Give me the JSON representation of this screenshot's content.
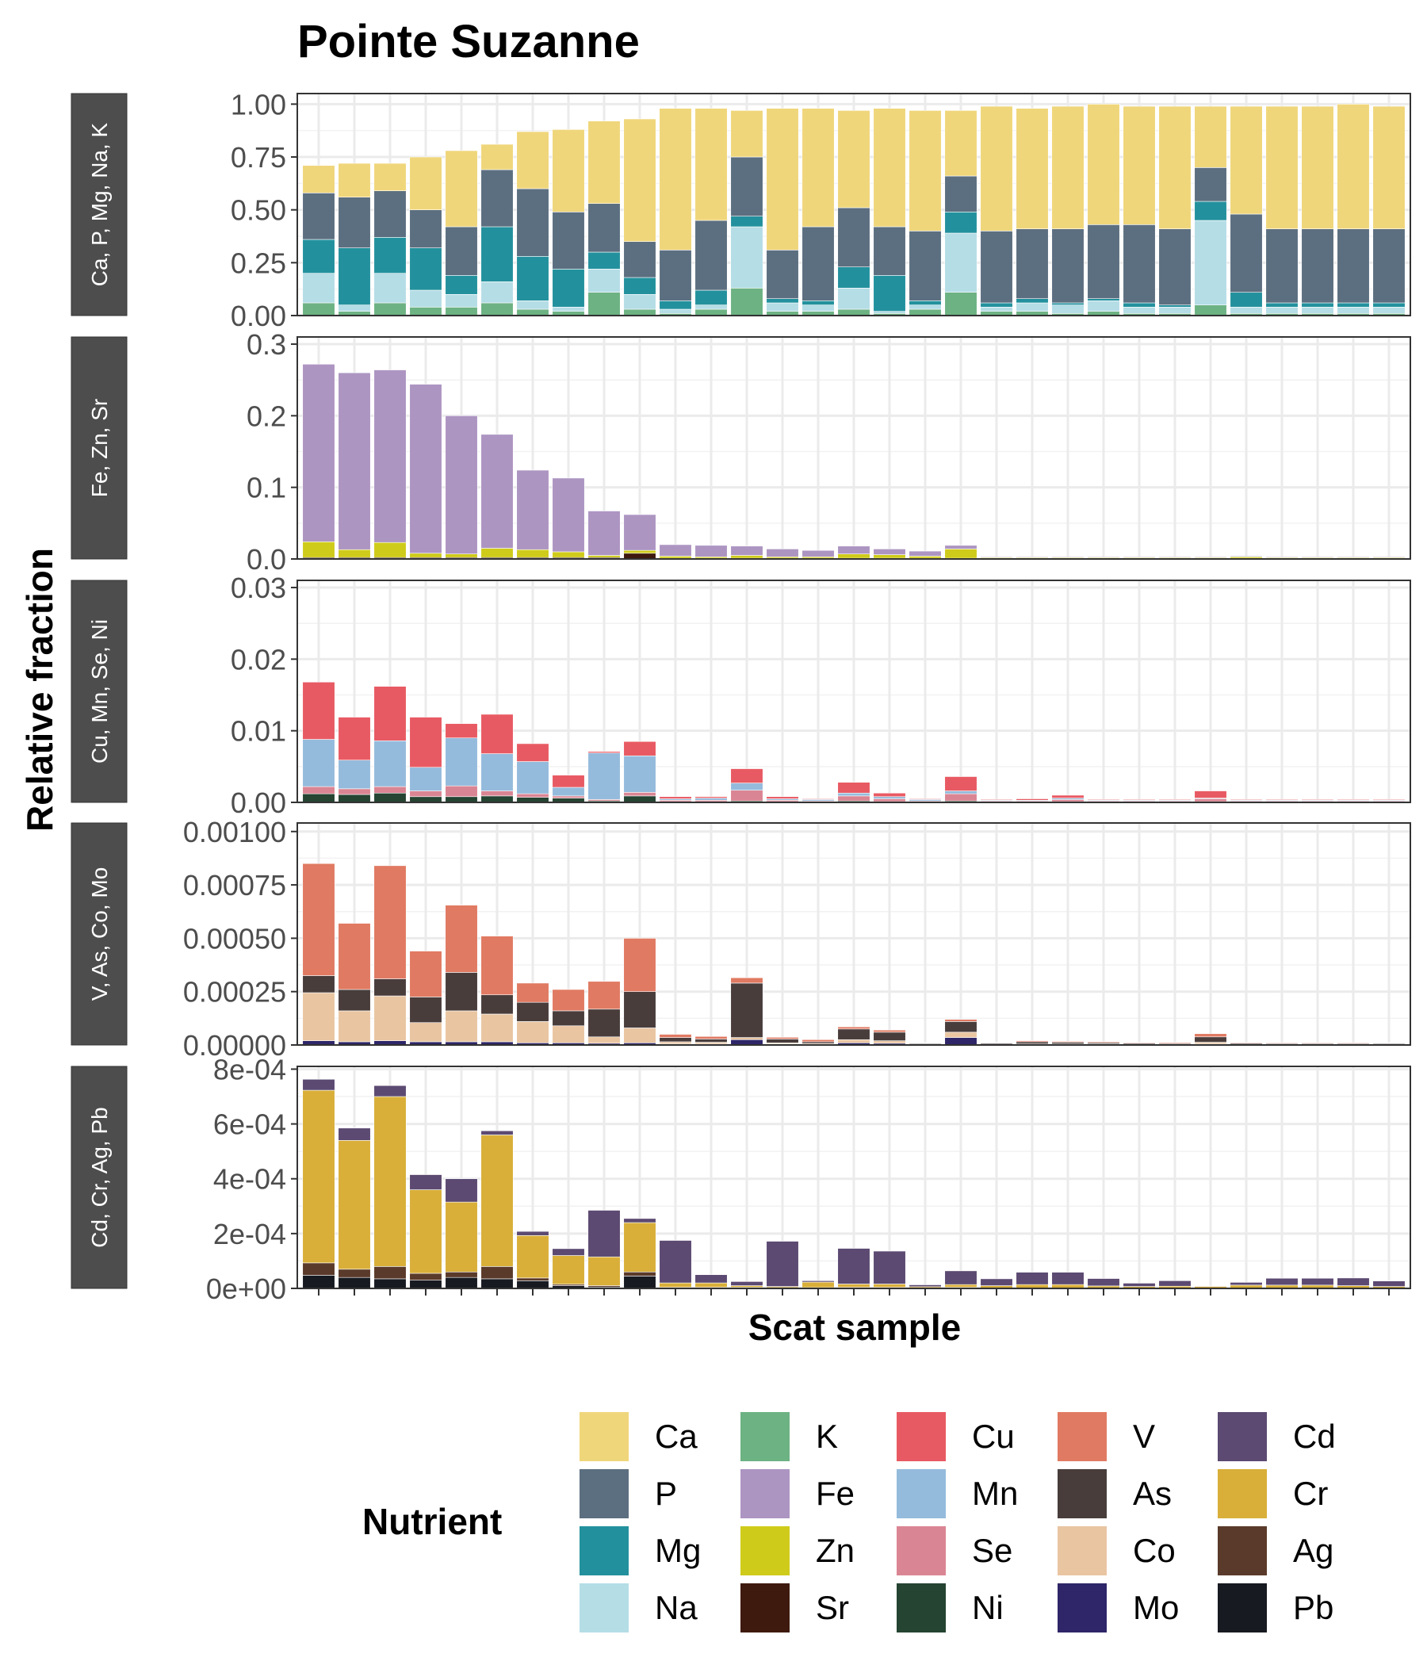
{
  "chart_data": {
    "type": "bar",
    "stacked": true,
    "faceted": true,
    "title": "Pointe Suzanne",
    "xlabel": "Scat sample",
    "ylabel": "Relative fraction",
    "legend": {
      "title": "Nutrient",
      "placement": "bottom",
      "items": [
        {
          "name": "Ca",
          "color": "#F0D67B"
        },
        {
          "name": "P",
          "color": "#5C6F80"
        },
        {
          "name": "Mg",
          "color": "#23919D"
        },
        {
          "name": "Na",
          "color": "#B5DDE6"
        },
        {
          "name": "K",
          "color": "#6DB283"
        },
        {
          "name": "Fe",
          "color": "#AD95C2"
        },
        {
          "name": "Zn",
          "color": "#CFCB1B"
        },
        {
          "name": "Sr",
          "color": "#3E1A0E"
        },
        {
          "name": "Cu",
          "color": "#E85A63"
        },
        {
          "name": "Mn",
          "color": "#95BBDC"
        },
        {
          "name": "Se",
          "color": "#DA8593"
        },
        {
          "name": "Ni",
          "color": "#254432"
        },
        {
          "name": "V",
          "color": "#E07A62"
        },
        {
          "name": "As",
          "color": "#493D3C"
        },
        {
          "name": "Co",
          "color": "#E9C5A2"
        },
        {
          "name": "Mo",
          "color": "#2E2668"
        },
        {
          "name": "Cd",
          "color": "#5C4A72"
        },
        {
          "name": "Cr",
          "color": "#D9AF39"
        },
        {
          "name": "Ag",
          "color": "#5A3A2A"
        },
        {
          "name": "Pb",
          "color": "#171A21"
        }
      ]
    },
    "sample_count": 31,
    "panels": [
      {
        "strip": "Ca, P, Mg, Na, K",
        "ylim": [
          0,
          1.05
        ],
        "ticks": [
          0,
          0.25,
          0.5,
          0.75,
          1.0
        ],
        "tick_labels": [
          "0.00",
          "0.25",
          "0.50",
          "0.75",
          "1.00"
        ],
        "series": [
          {
            "name": "K",
            "values": [
              0.06,
              0.02,
              0.06,
              0.04,
              0.04,
              0.06,
              0.03,
              0.02,
              0.11,
              0.03,
              0.01,
              0.03,
              0.13,
              0.02,
              0.02,
              0.03,
              0.01,
              0.03,
              0.11,
              0.02,
              0.02,
              0.01,
              0.02,
              0.01,
              0.01,
              0.05,
              0.01,
              0.01,
              0.01,
              0.01,
              0.01
            ]
          },
          {
            "name": "Na",
            "values": [
              0.14,
              0.03,
              0.14,
              0.08,
              0.06,
              0.1,
              0.04,
              0.02,
              0.11,
              0.07,
              0.02,
              0.02,
              0.29,
              0.04,
              0.03,
              0.1,
              0.01,
              0.02,
              0.28,
              0.02,
              0.04,
              0.04,
              0.05,
              0.03,
              0.03,
              0.4,
              0.03,
              0.03,
              0.03,
              0.03,
              0.03
            ]
          },
          {
            "name": "Mg",
            "values": [
              0.16,
              0.27,
              0.17,
              0.2,
              0.09,
              0.26,
              0.21,
              0.18,
              0.08,
              0.08,
              0.04,
              0.07,
              0.05,
              0.02,
              0.02,
              0.1,
              0.17,
              0.02,
              0.1,
              0.02,
              0.02,
              0.01,
              0.01,
              0.02,
              0.01,
              0.09,
              0.07,
              0.02,
              0.02,
              0.02,
              0.02
            ]
          },
          {
            "name": "P",
            "values": [
              0.22,
              0.24,
              0.22,
              0.18,
              0.23,
              0.27,
              0.32,
              0.27,
              0.23,
              0.17,
              0.24,
              0.33,
              0.28,
              0.23,
              0.35,
              0.28,
              0.23,
              0.33,
              0.17,
              0.34,
              0.33,
              0.35,
              0.35,
              0.37,
              0.36,
              0.16,
              0.37,
              0.35,
              0.35,
              0.35,
              0.35
            ]
          },
          {
            "name": "Ca",
            "values": [
              0.13,
              0.16,
              0.13,
              0.25,
              0.36,
              0.12,
              0.27,
              0.39,
              0.39,
              0.58,
              0.67,
              0.53,
              0.22,
              0.67,
              0.56,
              0.46,
              0.56,
              0.57,
              0.31,
              0.59,
              0.57,
              0.58,
              0.57,
              0.56,
              0.58,
              0.29,
              0.51,
              0.58,
              0.58,
              0.59,
              0.58
            ]
          }
        ]
      },
      {
        "strip": "Fe, Zn, Sr",
        "ylim": [
          0,
          0.31
        ],
        "ticks": [
          0,
          0.1,
          0.2,
          0.3
        ],
        "tick_labels": [
          "0.0",
          "0.1",
          "0.2",
          "0.3"
        ],
        "series": [
          {
            "name": "Sr",
            "values": [
              0.002,
              0.002,
              0.002,
              0.002,
              0.002,
              0.002,
              0.002,
              0.002,
              0.002,
              0.008,
              0.001,
              0.001,
              0.001,
              0.001,
              0.001,
              0.001,
              0.001,
              0.001,
              0.001,
              0.001,
              0.001,
              0.001,
              0.001,
              0.001,
              0.001,
              0.001,
              0.001,
              0.001,
              0.001,
              0.001,
              0.001
            ]
          },
          {
            "name": "Zn",
            "values": [
              0.022,
              0.011,
              0.021,
              0.006,
              0.005,
              0.013,
              0.011,
              0.008,
              0.003,
              0.004,
              0.003,
              0.002,
              0.004,
              0.002,
              0.002,
              0.006,
              0.005,
              0.003,
              0.013,
              0.001,
              0.001,
              0.001,
              0.001,
              0.001,
              0.001,
              0.001,
              0.002,
              0.001,
              0.001,
              0.001,
              0.001
            ]
          },
          {
            "name": "Fe",
            "values": [
              0.248,
              0.247,
              0.241,
              0.236,
              0.193,
              0.159,
              0.111,
              0.103,
              0.062,
              0.05,
              0.016,
              0.016,
              0.013,
              0.011,
              0.009,
              0.011,
              0.008,
              0.007,
              0.005,
              0.001,
              0.001,
              0.001,
              0.001,
              0.001,
              0.001,
              0.001,
              0.001,
              0.001,
              0.001,
              0.001,
              0.001
            ]
          }
        ]
      },
      {
        "strip": "Cu, Mn, Se, Ni",
        "ylim": [
          0,
          0.031
        ],
        "ticks": [
          0,
          0.01,
          0.02,
          0.03
        ],
        "tick_labels": [
          "0.00",
          "0.01",
          "0.02",
          "0.03"
        ],
        "series": [
          {
            "name": "Ni",
            "values": [
              0.0012,
              0.0011,
              0.0013,
              0.0008,
              0.0008,
              0.0009,
              0.0007,
              0.0006,
              0.0002,
              0.0009,
              0.0001,
              0.0001,
              0.0002,
              0.0001,
              0.0001,
              0.0002,
              0.0001,
              0.0001,
              0.0002,
              0.0001,
              0.0001,
              0.0001,
              0.0001,
              0.0001,
              0.0001,
              0.0001,
              0.0001,
              0.0001,
              0.0001,
              0.0001,
              0.0001
            ]
          },
          {
            "name": "Se",
            "values": [
              0.001,
              0.0008,
              0.0009,
              0.0008,
              0.0015,
              0.0007,
              0.0005,
              0.0003,
              0.0002,
              0.0005,
              0.0002,
              0.0002,
              0.0015,
              0.0002,
              0.0001,
              0.0007,
              0.0004,
              0.0001,
              0.001,
              0.0001,
              0.0001,
              0.0003,
              0.0001,
              0.0001,
              0.0001,
              0.0004,
              0.0001,
              0.0001,
              0.0001,
              0.0001,
              0.0001
            ]
          },
          {
            "name": "Mn",
            "values": [
              0.0066,
              0.004,
              0.0064,
              0.0033,
              0.0067,
              0.0052,
              0.0045,
              0.0012,
              0.0065,
              0.0051,
              0.0002,
              0.0003,
              0.001,
              0.0002,
              0.0002,
              0.0004,
              0.0003,
              0.0002,
              0.0004,
              0.0001,
              0.0001,
              0.0002,
              0.0001,
              0.0001,
              0.0001,
              0.0001,
              0.0001,
              0.0001,
              0.0001,
              0.0001,
              0.0001
            ]
          },
          {
            "name": "Cu",
            "values": [
              0.008,
              0.006,
              0.0076,
              0.007,
              0.002,
              0.0055,
              0.0025,
              0.0017,
              0.0002,
              0.002,
              0.0003,
              0.0002,
              0.002,
              0.0003,
              0.0001,
              0.0015,
              0.0005,
              0.0001,
              0.002,
              0.0001,
              0.0002,
              0.0004,
              0.0001,
              0.0001,
              0.0001,
              0.001,
              0.0001,
              0.0001,
              0.0001,
              0.0001,
              0.0001
            ]
          }
        ]
      },
      {
        "strip": "V, As, Co, Mo",
        "ylim": [
          0,
          0.00104
        ],
        "ticks": [
          0,
          0.00025,
          0.0005,
          0.00075,
          0.001
        ],
        "tick_labels": [
          "0.00000",
          "0.00025",
          "0.00050",
          "0.00075",
          "0.00100"
        ],
        "series": [
          {
            "name": "Mo",
            "values": [
              2e-05,
              1.5e-05,
              2e-05,
              1.5e-05,
              1.5e-05,
              1.5e-05,
              1e-05,
              1e-05,
              8e-06,
              1e-05,
              5e-06,
              5e-06,
              2.5e-05,
              5e-06,
              3e-06,
              1e-05,
              8e-06,
              2e-06,
              3.5e-05,
              2e-06,
              2e-06,
              2e-06,
              2e-06,
              2e-06,
              2e-06,
              5e-06,
              2e-06,
              2e-06,
              2e-06,
              2e-06,
              2e-06
            ]
          },
          {
            "name": "Co",
            "values": [
              0.000225,
              0.000145,
              0.00021,
              9e-05,
              0.000145,
              0.00013,
              0.0001,
              8e-05,
              3e-05,
              7e-05,
              1e-05,
              8e-06,
              1e-05,
              5e-06,
              4e-06,
              1.5e-05,
              1.2e-05,
              2e-06,
              2.5e-05,
              2e-06,
              3e-06,
              3e-06,
              3e-06,
              2e-06,
              2e-06,
              8e-06,
              2e-06,
              2e-06,
              2e-06,
              2e-06,
              2e-06
            ]
          },
          {
            "name": "As",
            "values": [
              8e-05,
              0.0001,
              8e-05,
              0.00012,
              0.00018,
              9e-05,
              9e-05,
              7e-05,
              0.00013,
              0.00017,
              2e-05,
              1.5e-05,
              0.000255,
              1.8e-05,
              8e-06,
              5e-05,
              4e-05,
              4e-06,
              5e-05,
              5e-06,
              1e-05,
              8e-06,
              6e-06,
              5e-06,
              4e-06,
              2.5e-05,
              5e-06,
              4e-06,
              4e-06,
              4e-06,
              4e-06
            ]
          },
          {
            "name": "V",
            "values": [
              0.000525,
              0.00031,
              0.00053,
              0.000215,
              0.000315,
              0.000275,
              9e-05,
              0.0001,
              0.00013,
              0.00025,
              1.5e-05,
              1.2e-05,
              2.5e-05,
              8e-06,
              1e-05,
              1e-05,
              1e-05,
              2e-06,
              1e-05,
              2e-06,
              5e-06,
              4e-06,
              4e-06,
              3e-06,
              4e-06,
              1.5e-05,
              3e-06,
              3e-06,
              3e-06,
              3e-06,
              2e-06
            ]
          }
        ]
      },
      {
        "strip": "Cd, Cr, Ag, Pb",
        "ylim": [
          0,
          0.00081
        ],
        "ticks": [
          0,
          0.0002,
          0.0004,
          0.0006,
          0.0008
        ],
        "tick_labels": [
          "0e+00",
          "2e-04",
          "4e-04",
          "6e-04",
          "8e-04"
        ],
        "series": [
          {
            "name": "Pb",
            "values": [
              4.8e-05,
              4e-05,
              3.5e-05,
              3e-05,
              4e-05,
              3.5e-05,
              2.8e-05,
              1e-05,
              5e-06,
              4.5e-05,
              2e-06,
              2e-06,
              2e-06,
              2e-06,
              2e-06,
              2e-06,
              2e-06,
              1e-06,
              2e-06,
              1e-06,
              1e-06,
              1e-06,
              1e-06,
              1e-06,
              1e-06,
              1e-06,
              1e-06,
              1e-06,
              1e-06,
              1e-06,
              1e-06
            ]
          },
          {
            "name": "Ag",
            "values": [
              4.5e-05,
              3e-05,
              4.5e-05,
              2.5e-05,
              2e-05,
              4.5e-05,
              1e-05,
              5e-06,
              5e-06,
              1.5e-05,
              2e-06,
              2e-06,
              2e-06,
              1e-06,
              1e-06,
              2e-06,
              2e-06,
              1e-06,
              2e-06,
              1e-06,
              1e-06,
              1e-06,
              1e-06,
              1e-06,
              1e-06,
              1e-06,
              1e-06,
              1e-06,
              1e-06,
              1e-06,
              1e-06
            ]
          },
          {
            "name": "Cr",
            "values": [
              0.00063,
              0.00047,
              0.00062,
              0.000305,
              0.000255,
              0.00048,
              0.000155,
              0.000105,
              0.000105,
              0.00018,
              1.6e-05,
              1.6e-05,
              6e-06,
              4e-06,
              2e-05,
              1.2e-05,
              1.2e-05,
              4e-06,
              1e-05,
              8e-06,
              1.2e-05,
              1.2e-05,
              7e-06,
              5e-06,
              6e-06,
              5e-06,
              1e-05,
              1e-05,
              1e-05,
              8e-06,
              5e-06
            ]
          },
          {
            "name": "Cd",
            "values": [
              4e-05,
              4.5e-05,
              4e-05,
              5.5e-05,
              8.5e-05,
              1.5e-05,
              1.5e-05,
              2.5e-05,
              0.00017,
              1.5e-05,
              0.000155,
              3e-05,
              1.5e-05,
              0.000165,
              5e-06,
              0.00013,
              0.00012,
              7e-06,
              5e-05,
              2.5e-05,
              4.5e-05,
              4.5e-05,
              2.7e-05,
              1.2e-05,
              2e-05,
              2e-06,
              1e-05,
              2.5e-05,
              2.5e-05,
              2.8e-05,
              2e-05
            ]
          }
        ]
      }
    ]
  }
}
